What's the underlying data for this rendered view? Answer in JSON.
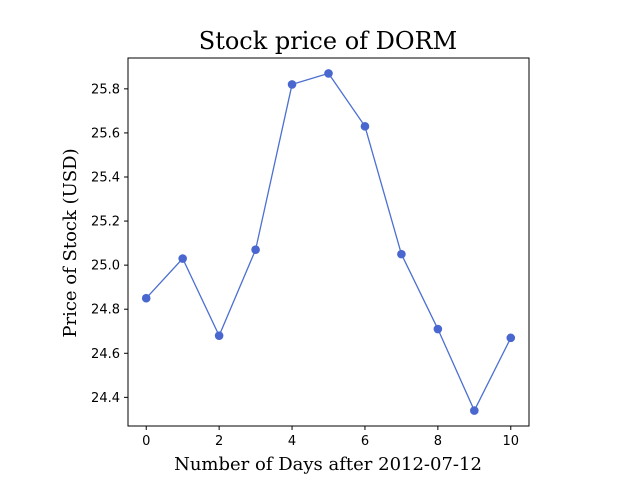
{
  "chart_data": {
    "type": "line",
    "title": "Stock price of DORM",
    "xlabel": "Number of Days after 2012-07-12",
    "ylabel": "Price of Stock (USD)",
    "x": [
      0,
      1,
      2,
      3,
      4,
      5,
      6,
      7,
      8,
      9,
      10
    ],
    "series": [
      {
        "values": [
          24.85,
          25.03,
          24.68,
          25.07,
          25.82,
          25.87,
          25.63,
          25.05,
          24.71,
          24.34,
          24.67
        ]
      }
    ],
    "xlim": [
      -0.5,
      10.5
    ],
    "ylim": [
      24.27,
      25.94
    ],
    "xticks": [
      0,
      2,
      4,
      6,
      8,
      10
    ],
    "yticks": [
      24.4,
      24.6,
      24.8,
      25.0,
      25.2,
      25.4,
      25.6,
      25.8
    ],
    "xtick_labels": [
      "0",
      "2",
      "4",
      "6",
      "8",
      "10"
    ],
    "ytick_labels": [
      "24.4",
      "24.6",
      "24.8",
      "25.0",
      "25.2",
      "25.4",
      "25.6",
      "25.8"
    ],
    "grid": false,
    "line_color": "#4c6fd1",
    "marker_color": "#4a67cf"
  }
}
